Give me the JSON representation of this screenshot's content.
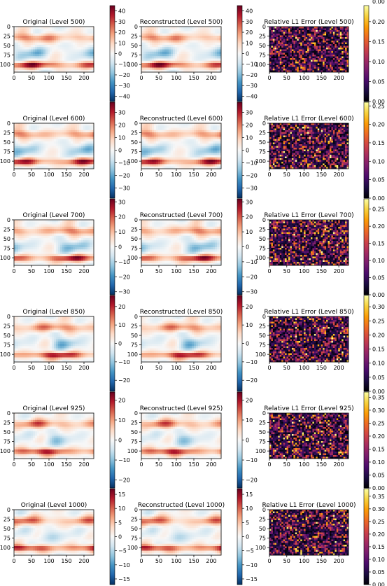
{
  "chart_data": {
    "type": "heatmap",
    "layout": {
      "rows": 6,
      "cols": 3
    },
    "x_ticks": [
      0,
      50,
      100,
      150,
      200
    ],
    "y_ticks": [
      0,
      25,
      50,
      75,
      100
    ],
    "xlim": [
      0,
      228
    ],
    "ylim": [
      120,
      0
    ],
    "colormaps": {
      "field": "RdBu_r",
      "error": "inferno"
    },
    "panels": [
      {
        "level": 500,
        "title_original": "Original (Level 500)",
        "title_recon": "Reconstructed (Level 500)",
        "title_error": "Relative L1 Error (Level 500)",
        "field_range": [
          -45,
          45
        ],
        "field_ticks": [
          -40,
          -30,
          -20,
          -10,
          0,
          10,
          20,
          30,
          40
        ],
        "error_range": [
          0,
          0.24
        ],
        "error_ticks": [
          0.0,
          0.05,
          0.1,
          0.15,
          0.2
        ],
        "error_top_label": "0.00"
      },
      {
        "level": 600,
        "title_original": "Original (Level 600)",
        "title_recon": "Reconstructed (Level 600)",
        "title_error": "Relative L1 Error (Level 600)",
        "field_range": [
          -38,
          38
        ],
        "field_ticks": [
          -30,
          -20,
          -10,
          0,
          10,
          20,
          30
        ],
        "error_range": [
          0,
          0.26
        ],
        "error_ticks": [
          0.0,
          0.05,
          0.1,
          0.15,
          0.2,
          0.25
        ]
      },
      {
        "level": 700,
        "title_original": "Original (Level 700)",
        "title_recon": "Reconstructed (Level 700)",
        "title_error": "Relative L1 Error (Level 700)",
        "field_range": [
          -32,
          32
        ],
        "field_ticks": [
          -30,
          -20,
          -10,
          0,
          10,
          20,
          30
        ],
        "error_range": [
          0,
          0.28
        ],
        "error_ticks": [
          0.0,
          0.05,
          0.1,
          0.15,
          0.2,
          0.25
        ]
      },
      {
        "level": 850,
        "title_original": "Original (Level 850)",
        "title_recon": "Reconstructed (Level 850)",
        "title_error": "Relative L1 Error (Level 850)",
        "field_range": [
          -26,
          26
        ],
        "field_ticks": [
          -20,
          -10,
          0,
          10,
          20
        ],
        "error_range": [
          0,
          0.34
        ],
        "error_ticks": [
          0.0,
          0.05,
          0.1,
          0.15,
          0.2,
          0.25,
          0.3
        ]
      },
      {
        "level": 925,
        "title_original": "Original (Level 925)",
        "title_recon": "Reconstructed (Level 925)",
        "title_error": "Relative L1 Error (Level 925)",
        "field_range": [
          -24,
          24
        ],
        "field_ticks": [
          -20,
          -10,
          0,
          10,
          20
        ],
        "error_range": [
          0,
          0.37
        ],
        "error_ticks": [
          0.0,
          0.05,
          0.1,
          0.15,
          0.2,
          0.25,
          0.3,
          0.35
        ]
      },
      {
        "level": 1000,
        "title_original": "Original (Level 1000)",
        "title_recon": "Reconstructed (Level 1000)",
        "title_error": "Relative L1 Error (Level 1000)",
        "field_range": [
          -17,
          17
        ],
        "field_ticks": [
          -15,
          -10,
          -5,
          0,
          5,
          10,
          15
        ],
        "error_range": [
          0,
          0.38
        ],
        "error_ticks": [
          0.0,
          0.05,
          0.1,
          0.15,
          0.2,
          0.25,
          0.3,
          0.35
        ]
      }
    ]
  }
}
